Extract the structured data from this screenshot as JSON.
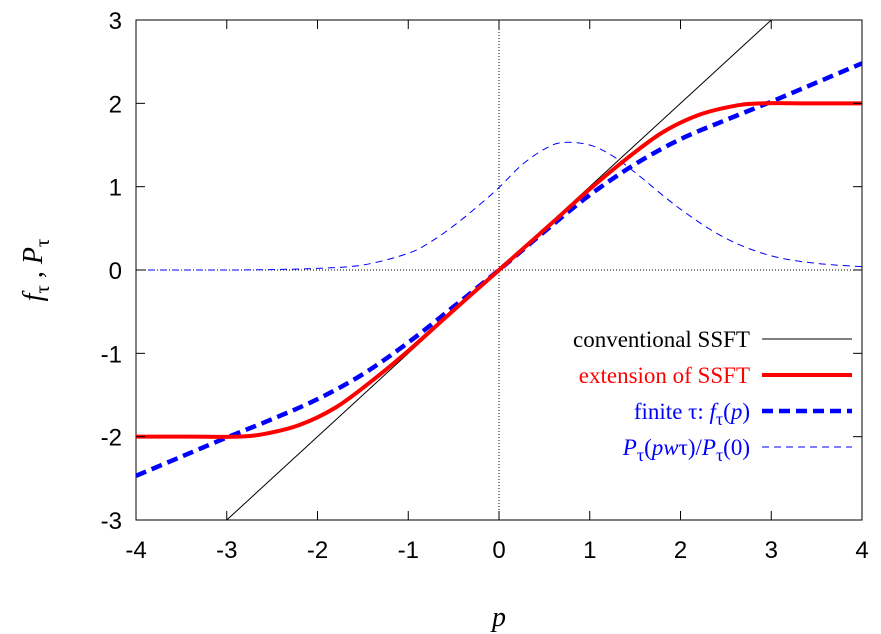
{
  "chart_data": {
    "type": "line",
    "xlabel": "p",
    "ylabel": "f_τ , P_τ",
    "xlim": [
      -4,
      4
    ],
    "ylim": [
      -3,
      3
    ],
    "x_ticks": [
      "-4",
      "-3",
      "-2",
      "-1",
      "0",
      "1",
      "2",
      "3",
      "4"
    ],
    "y_ticks": [
      "-3",
      "-2",
      "-1",
      "0",
      "1",
      "2",
      "3"
    ],
    "grid": false,
    "zero_lines": true,
    "legend_position": "lower-right",
    "series": [
      {
        "name": "conventional SSFT",
        "color": "#000000",
        "style": "solid-thin",
        "x": [
          -3,
          3
        ],
        "y": [
          -3,
          3
        ]
      },
      {
        "name": "extension of SSFT",
        "color": "#ff0000",
        "style": "solid-thick",
        "x": [
          -4,
          -3.4,
          -2.9,
          -2.6,
          -2.2,
          -1.8,
          -1.4,
          -1.0,
          -0.6,
          -0.3,
          0,
          0.3,
          0.6,
          1.0,
          1.4,
          1.8,
          2.2,
          2.6,
          2.9,
          3.4,
          4
        ],
        "y": [
          -2,
          -2,
          -2,
          -1.97,
          -1.86,
          -1.65,
          -1.33,
          -0.97,
          -0.58,
          -0.29,
          0,
          0.29,
          0.58,
          0.97,
          1.33,
          1.65,
          1.86,
          1.97,
          2,
          2,
          2
        ]
      },
      {
        "name": "finite τ: f_τ(p)",
        "color": "#0000ff",
        "style": "dashed-thick",
        "x": [
          -4,
          -3.5,
          -3,
          -2.5,
          -2,
          -1.5,
          -1,
          -0.5,
          0,
          0.5,
          1,
          1.5,
          2,
          2.5,
          3,
          3.5,
          4
        ],
        "y": [
          -2.47,
          -2.24,
          -2.01,
          -1.79,
          -1.55,
          -1.25,
          -0.87,
          -0.44,
          0,
          0.46,
          0.9,
          1.27,
          1.57,
          1.8,
          2.02,
          2.25,
          2.48
        ]
      },
      {
        "name": "P_τ(pwτ)/P_τ(0)",
        "color": "#0000ff",
        "style": "dashed-thin",
        "x": [
          -4,
          -3.5,
          -3,
          -2.5,
          -2,
          -1.5,
          -1,
          -0.75,
          -0.5,
          -0.25,
          0,
          0.25,
          0.5,
          0.7,
          1,
          1.25,
          1.5,
          2,
          2.5,
          3,
          3.5,
          4
        ],
        "y": [
          0,
          0,
          0,
          0.005,
          0.02,
          0.06,
          0.2,
          0.34,
          0.53,
          0.75,
          0.99,
          1.26,
          1.45,
          1.53,
          1.5,
          1.37,
          1.17,
          0.73,
          0.38,
          0.17,
          0.08,
          0.04
        ]
      }
    ],
    "legend": [
      {
        "label": "conventional SSFT",
        "color": "#000000"
      },
      {
        "label": "extension of SSFT",
        "color": "#ff0000"
      },
      {
        "label_html": "finite τ: f_τ(p)",
        "color": "#0000ff"
      },
      {
        "label_html": "P_τ(pwτ)/P_τ(0)",
        "color": "#0000ff"
      }
    ]
  }
}
